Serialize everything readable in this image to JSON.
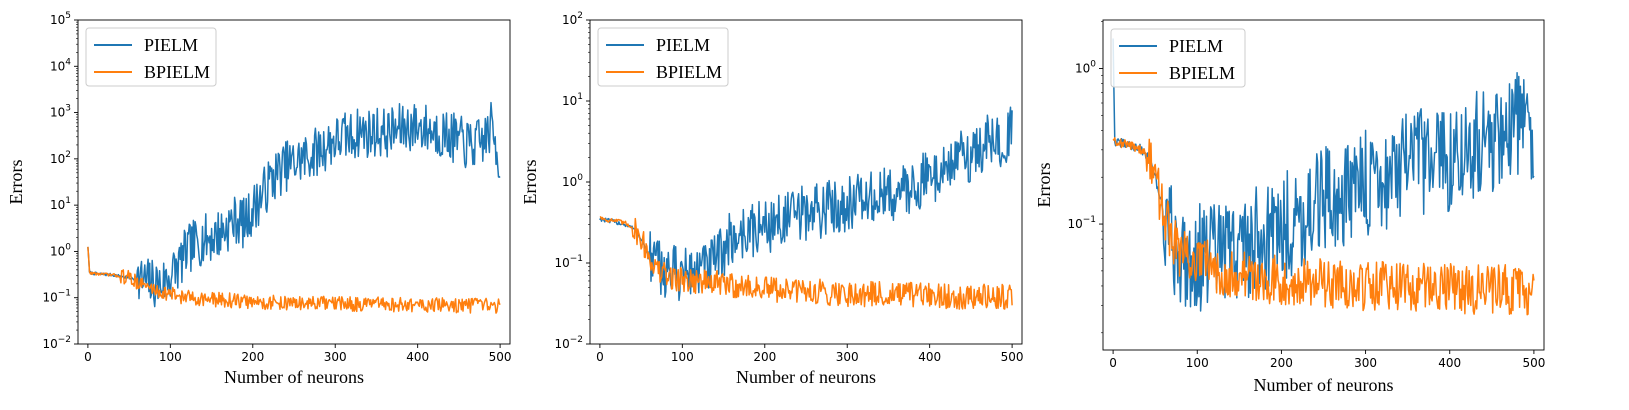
{
  "chart_data": [
    {
      "type": "line",
      "title": "",
      "xlabel": "Number of neurons",
      "ylabel": "Errors",
      "yscale": "log",
      "xlim": [
        -12,
        512
      ],
      "ylim": [
        0.01,
        100000
      ],
      "xticks": [
        0,
        100,
        200,
        300,
        400,
        500
      ],
      "yticks": [
        0.01,
        0.1,
        1,
        10,
        100,
        1000,
        10000,
        100000
      ],
      "legend_position": "top-left",
      "series": [
        {
          "name": "PIELM",
          "color": "#1f77b4",
          "x": [
            0,
            2,
            5,
            10,
            20,
            30,
            40,
            50,
            60,
            70,
            80,
            90,
            100,
            110,
            120,
            130,
            140,
            150,
            160,
            170,
            180,
            190,
            200,
            210,
            220,
            230,
            240,
            250,
            260,
            270,
            280,
            290,
            300,
            310,
            320,
            330,
            340,
            350,
            360,
            370,
            380,
            390,
            400,
            410,
            420,
            430,
            440,
            450,
            460,
            470,
            480,
            490,
            500
          ],
          "values": [
            1.3,
            0.35,
            0.34,
            0.33,
            0.32,
            0.31,
            0.29,
            0.27,
            0.24,
            0.22,
            0.2,
            0.2,
            0.3,
            0.5,
            1.0,
            1.5,
            1.8,
            2.0,
            2.5,
            3.5,
            5,
            4,
            8,
            15,
            30,
            50,
            70,
            80,
            100,
            120,
            150,
            200,
            250,
            300,
            300,
            400,
            350,
            400,
            350,
            400,
            450,
            500,
            500,
            450,
            400,
            350,
            300,
            250,
            200,
            200,
            250,
            500,
            70
          ]
        },
        {
          "name": "BPIELM",
          "color": "#ff7f0e",
          "x": [
            0,
            2,
            5,
            10,
            20,
            30,
            40,
            50,
            60,
            70,
            80,
            90,
            100,
            110,
            120,
            130,
            140,
            150,
            160,
            170,
            180,
            190,
            200,
            210,
            220,
            230,
            240,
            250,
            260,
            270,
            280,
            290,
            300,
            310,
            320,
            330,
            340,
            350,
            360,
            370,
            380,
            390,
            400,
            410,
            420,
            430,
            440,
            450,
            460,
            470,
            480,
            490,
            500
          ],
          "values": [
            1.3,
            0.35,
            0.34,
            0.33,
            0.32,
            0.31,
            0.29,
            0.27,
            0.22,
            0.18,
            0.15,
            0.13,
            0.12,
            0.11,
            0.1,
            0.1,
            0.095,
            0.09,
            0.09,
            0.088,
            0.085,
            0.083,
            0.08,
            0.08,
            0.078,
            0.078,
            0.077,
            0.076,
            0.075,
            0.075,
            0.075,
            0.074,
            0.074,
            0.073,
            0.073,
            0.072,
            0.072,
            0.072,
            0.071,
            0.071,
            0.07,
            0.07,
            0.07,
            0.069,
            0.069,
            0.069,
            0.068,
            0.068,
            0.068,
            0.067,
            0.067,
            0.067,
            0.067
          ]
        }
      ]
    },
    {
      "type": "line",
      "title": "",
      "xlabel": "Number of neurons",
      "ylabel": "Errors",
      "yscale": "log",
      "xlim": [
        -12,
        512
      ],
      "ylim": [
        0.01,
        100
      ],
      "xticks": [
        0,
        100,
        200,
        300,
        400,
        500
      ],
      "yticks": [
        0.01,
        0.1,
        1,
        10,
        100
      ],
      "legend_position": "top-left",
      "series": [
        {
          "name": "PIELM",
          "color": "#1f77b4",
          "x": [
            0,
            2,
            5,
            10,
            20,
            30,
            40,
            50,
            60,
            70,
            80,
            90,
            100,
            110,
            120,
            130,
            140,
            150,
            160,
            170,
            180,
            190,
            200,
            210,
            220,
            230,
            240,
            250,
            260,
            270,
            280,
            290,
            300,
            310,
            320,
            330,
            340,
            350,
            360,
            370,
            380,
            390,
            400,
            410,
            420,
            430,
            440,
            450,
            460,
            470,
            480,
            490,
            500
          ],
          "values": [
            0.35,
            0.35,
            0.34,
            0.33,
            0.32,
            0.3,
            0.27,
            0.2,
            0.12,
            0.09,
            0.08,
            0.075,
            0.075,
            0.075,
            0.08,
            0.085,
            0.1,
            0.15,
            0.2,
            0.22,
            0.25,
            0.25,
            0.3,
            0.3,
            0.35,
            0.35,
            0.4,
            0.4,
            0.45,
            0.45,
            0.5,
            0.5,
            0.55,
            0.6,
            0.6,
            0.6,
            0.65,
            0.7,
            0.7,
            0.8,
            0.9,
            1.0,
            1.2,
            1.3,
            1.5,
            1.8,
            2.0,
            2.2,
            2.5,
            3.0,
            3.2,
            3.5,
            4.0
          ]
        },
        {
          "name": "BPIELM",
          "color": "#ff7f0e",
          "x": [
            0,
            2,
            5,
            10,
            20,
            30,
            40,
            50,
            60,
            70,
            80,
            90,
            100,
            110,
            120,
            130,
            140,
            150,
            160,
            170,
            180,
            190,
            200,
            210,
            220,
            230,
            240,
            250,
            260,
            270,
            280,
            290,
            300,
            310,
            320,
            330,
            340,
            350,
            360,
            370,
            380,
            390,
            400,
            410,
            420,
            430,
            440,
            450,
            460,
            470,
            480,
            490,
            500
          ],
          "values": [
            0.38,
            0.36,
            0.35,
            0.34,
            0.33,
            0.31,
            0.28,
            0.2,
            0.12,
            0.08,
            0.07,
            0.065,
            0.063,
            0.062,
            0.06,
            0.058,
            0.056,
            0.055,
            0.053,
            0.052,
            0.05,
            0.049,
            0.048,
            0.047,
            0.046,
            0.046,
            0.045,
            0.045,
            0.044,
            0.044,
            0.043,
            0.043,
            0.042,
            0.042,
            0.042,
            0.041,
            0.041,
            0.041,
            0.04,
            0.04,
            0.04,
            0.04,
            0.04,
            0.039,
            0.039,
            0.039,
            0.039,
            0.038,
            0.038,
            0.038,
            0.038,
            0.038,
            0.038
          ]
        }
      ]
    },
    {
      "type": "line",
      "title": "",
      "xlabel": "Number of neurons",
      "ylabel": "Errors",
      "yscale": "log",
      "xlim": [
        -12,
        512
      ],
      "ylim": [
        0.0155,
        2.05
      ],
      "xticks": [
        0,
        100,
        200,
        300,
        400,
        500
      ],
      "yticks": [
        0.1,
        1
      ],
      "legend_position": "top-left",
      "series": [
        {
          "name": "PIELM",
          "color": "#1f77b4",
          "x": [
            0,
            2,
            5,
            10,
            20,
            30,
            40,
            50,
            60,
            70,
            80,
            90,
            100,
            110,
            120,
            130,
            140,
            150,
            160,
            170,
            180,
            190,
            200,
            210,
            220,
            230,
            240,
            250,
            260,
            270,
            280,
            290,
            300,
            310,
            320,
            330,
            340,
            350,
            360,
            370,
            380,
            390,
            400,
            410,
            420,
            430,
            440,
            450,
            460,
            470,
            480,
            490,
            500
          ],
          "values": [
            1.6,
            0.34,
            0.33,
            0.33,
            0.32,
            0.31,
            0.28,
            0.2,
            0.12,
            0.08,
            0.065,
            0.06,
            0.06,
            0.062,
            0.064,
            0.065,
            0.068,
            0.07,
            0.075,
            0.08,
            0.085,
            0.09,
            0.095,
            0.1,
            0.11,
            0.12,
            0.13,
            0.14,
            0.15,
            0.15,
            0.16,
            0.17,
            0.18,
            0.19,
            0.2,
            0.2,
            0.22,
            0.23,
            0.25,
            0.25,
            0.25,
            0.26,
            0.27,
            0.28,
            0.3,
            0.32,
            0.33,
            0.35,
            0.38,
            0.4,
            0.45,
            0.5,
            0.2
          ]
        },
        {
          "name": "BPIELM",
          "color": "#ff7f0e",
          "x": [
            0,
            2,
            5,
            10,
            20,
            30,
            40,
            50,
            60,
            70,
            80,
            90,
            100,
            110,
            120,
            130,
            140,
            150,
            160,
            170,
            180,
            190,
            200,
            210,
            220,
            230,
            240,
            250,
            260,
            270,
            280,
            290,
            300,
            310,
            320,
            330,
            340,
            350,
            360,
            370,
            380,
            390,
            400,
            410,
            420,
            430,
            440,
            450,
            460,
            470,
            480,
            490,
            500
          ],
          "values": [
            0.36,
            0.35,
            0.34,
            0.33,
            0.32,
            0.31,
            0.28,
            0.2,
            0.12,
            0.08,
            0.065,
            0.06,
            0.058,
            0.055,
            0.053,
            0.05,
            0.048,
            0.047,
            0.046,
            0.045,
            0.045,
            0.044,
            0.044,
            0.043,
            0.043,
            0.042,
            0.042,
            0.042,
            0.041,
            0.041,
            0.041,
            0.04,
            0.04,
            0.04,
            0.04,
            0.04,
            0.04,
            0.04,
            0.039,
            0.039,
            0.039,
            0.039,
            0.039,
            0.039,
            0.038,
            0.038,
            0.038,
            0.038,
            0.038,
            0.038,
            0.038,
            0.038,
            0.035
          ]
        }
      ]
    }
  ]
}
